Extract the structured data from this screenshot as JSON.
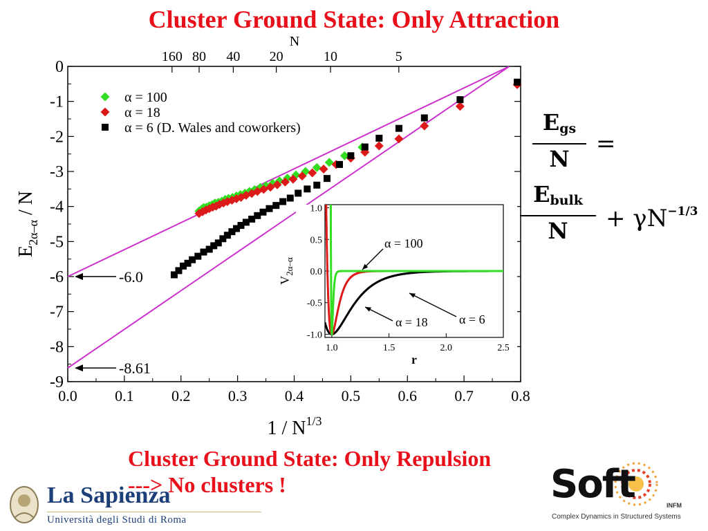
{
  "slide": {
    "title": "Cluster Ground State: Only Attraction",
    "bottom_line1": "Cluster Ground State: Only Repulsion",
    "bottom_line2": "---> No clusters !"
  },
  "formula": {
    "lhs_num": "E",
    "lhs_num_sub": "gs",
    "lhs_den": "N",
    "equals": "=",
    "rhs_num": "E",
    "rhs_num_sub": "bulk",
    "rhs_den": "N",
    "plus_gamma": "+ γN",
    "exponent": "−1/3"
  },
  "logos": {
    "left_name": "La Sapienza",
    "left_sub": "Università degli Studi di Roma",
    "right_word": "Soft",
    "right_infm": "INFM",
    "right_tagline": "Complex Dynamics in Structured Systems"
  },
  "colors": {
    "title_red": "#e8101a",
    "alpha100": "#33dd22",
    "alpha18": "#dd1a1a",
    "alpha6": "#000000",
    "fit_line": "#cc33cc"
  },
  "chart_data": [
    {
      "type": "scatter",
      "xlabel": "1 / N",
      "xlabel_sup": "1/3",
      "ylabel": "E",
      "ylabel_sub": "2α–α",
      "ylabel_suffix": " / N",
      "top_axis_label": "N",
      "xlim": [
        0,
        0.8
      ],
      "ylim": [
        -9,
        0
      ],
      "xticks": [
        0,
        0.1,
        0.2,
        0.3,
        0.4,
        0.5,
        0.6,
        0.7,
        0.8
      ],
      "xtick_labels": [
        "0.0",
        "0.1",
        "0.2",
        "0.3",
        "0.4",
        "0.5",
        "0.6",
        "0.7",
        "0.8"
      ],
      "yticks": [
        0,
        -1,
        -2,
        -3,
        -4,
        -5,
        -6,
        -7,
        -8,
        -9
      ],
      "ytick_labels": [
        "0",
        "-1",
        "-2",
        "-3",
        "-4",
        "-5",
        "-6",
        "-7",
        "-8",
        "-9"
      ],
      "top_ticks": [
        160,
        80,
        40,
        20,
        10,
        5
      ],
      "top_tick_labels": [
        "160",
        "80",
        "40",
        "20",
        "10",
        "5"
      ],
      "legend_position": "top-left",
      "series": [
        {
          "name": "α = 100",
          "marker": "diamond",
          "color": "#33dd22",
          "x": [
            0.232,
            0.236,
            0.24,
            0.245,
            0.25,
            0.255,
            0.26,
            0.266,
            0.272,
            0.278,
            0.284,
            0.291,
            0.298,
            0.305,
            0.313,
            0.321,
            0.33,
            0.34,
            0.35,
            0.362,
            0.374,
            0.388,
            0.403,
            0.42,
            0.44,
            0.462,
            0.489,
            0.52
          ],
          "y": [
            -4.13,
            -4.08,
            -4.03,
            -4.02,
            -3.98,
            -3.95,
            -3.9,
            -3.88,
            -3.85,
            -3.8,
            -3.77,
            -3.74,
            -3.7,
            -3.66,
            -3.62,
            -3.57,
            -3.52,
            -3.46,
            -3.41,
            -3.34,
            -3.27,
            -3.19,
            -3.1,
            -3.0,
            -2.89,
            -2.74,
            -2.55,
            -2.31
          ]
        },
        {
          "name": "α = 18",
          "marker": "diamond",
          "color": "#dd1a1a",
          "x": [
            0.232,
            0.238,
            0.244,
            0.25,
            0.256,
            0.262,
            0.268,
            0.275,
            0.282,
            0.29,
            0.298,
            0.306,
            0.315,
            0.325,
            0.335,
            0.346,
            0.358,
            0.37,
            0.384,
            0.398,
            0.414,
            0.432,
            0.452,
            0.474,
            0.5,
            0.525,
            0.55,
            0.585,
            0.63,
            0.693,
            0.794
          ],
          "y": [
            -4.2,
            -4.15,
            -4.1,
            -4.06,
            -4.02,
            -3.99,
            -3.94,
            -3.9,
            -3.86,
            -3.82,
            -3.78,
            -3.74,
            -3.68,
            -3.63,
            -3.57,
            -3.51,
            -3.45,
            -3.38,
            -3.3,
            -3.22,
            -3.13,
            -3.04,
            -2.93,
            -2.8,
            -2.62,
            -2.45,
            -2.27,
            -2.07,
            -1.7,
            -1.14,
            -0.52
          ]
        },
        {
          "name": "α = 6 (D. Wales and coworkers)",
          "marker": "square",
          "color": "#000000",
          "x": [
            0.188,
            0.196,
            0.204,
            0.212,
            0.22,
            0.23,
            0.24,
            0.25,
            0.258,
            0.266,
            0.274,
            0.282,
            0.29,
            0.298,
            0.306,
            0.315,
            0.325,
            0.335,
            0.345,
            0.356,
            0.368,
            0.38,
            0.393,
            0.407,
            0.423,
            0.44,
            0.458,
            0.48,
            0.5,
            0.525,
            0.55,
            0.585,
            0.63,
            0.693,
            0.794
          ],
          "y": [
            -5.95,
            -5.83,
            -5.7,
            -5.62,
            -5.52,
            -5.42,
            -5.3,
            -5.22,
            -5.12,
            -5.04,
            -4.92,
            -4.82,
            -4.72,
            -4.63,
            -4.54,
            -4.45,
            -4.36,
            -4.26,
            -4.16,
            -4.06,
            -3.97,
            -3.86,
            -3.76,
            -3.62,
            -3.5,
            -3.39,
            -3.2,
            -2.8,
            -2.55,
            -2.3,
            -2.05,
            -1.77,
            -1.47,
            -0.95,
            -0.45
          ]
        }
      ],
      "fit_lines": [
        {
          "x": [
            0,
            0.78
          ],
          "y": [
            -6.0,
            0.0
          ]
        },
        {
          "x": [
            0,
            0.78
          ],
          "y": [
            -8.61,
            0.0
          ]
        }
      ],
      "annotations": [
        {
          "text": "-6.0",
          "x": 0.0,
          "y": -6.0
        },
        {
          "text": "-8.61",
          "x": 0.0,
          "y": -8.61
        }
      ]
    },
    {
      "type": "line",
      "xlabel": "r",
      "ylabel": "V",
      "ylabel_sub": "2α–α",
      "xlim": [
        0.94,
        2.5
      ],
      "ylim": [
        -1.05,
        1.05
      ],
      "xticks": [
        1.0,
        1.5,
        2.0,
        2.5
      ],
      "xtick_labels": [
        "1.0",
        "1.5",
        "2.0",
        "2.5"
      ],
      "yticks": [
        1.0,
        0.5,
        0.0,
        -0.5,
        -1.0
      ],
      "ytick_labels": [
        "1.0",
        "0.5",
        "0.0",
        "-0.5",
        "-1.0"
      ],
      "series": [
        {
          "name": "α = 100",
          "color": "#33dd22",
          "alpha": 100
        },
        {
          "name": "α = 18",
          "color": "#dd1a1a",
          "alpha": 18
        },
        {
          "name": "α = 6",
          "color": "#000000",
          "alpha": 6
        }
      ]
    }
  ]
}
